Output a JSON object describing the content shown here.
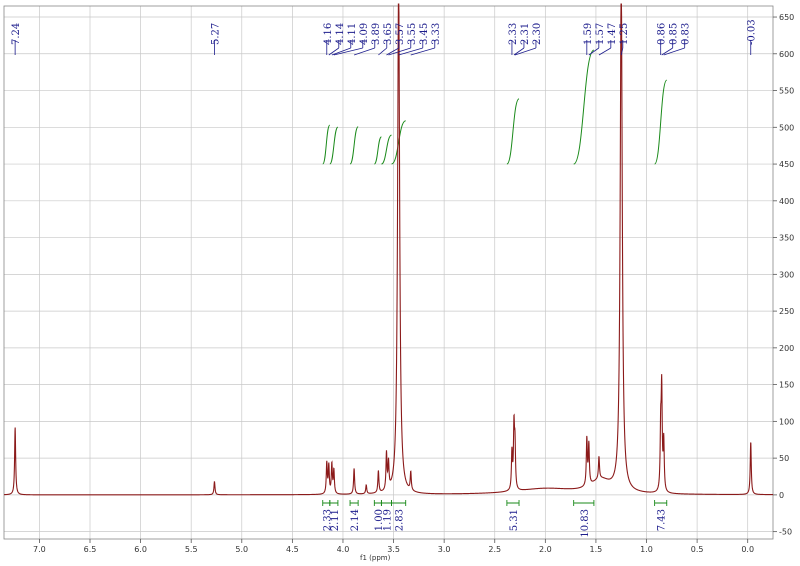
{
  "chart_data": {
    "type": "line",
    "title": "",
    "xlabel": "f1 (ppm)",
    "ylabel": "",
    "xlim": [
      7.35,
      -0.25
    ],
    "ylim": [
      -60,
      665
    ],
    "x_ticks": [
      "7.0",
      "6.5",
      "6.0",
      "5.5",
      "5.0",
      "4.5",
      "4.0",
      "3.5",
      "3.0",
      "2.5",
      "2.0",
      "1.5",
      "1.0",
      "0.5",
      "0.0"
    ],
    "y_ticks": [
      "-50",
      "0",
      "50",
      "100",
      "150",
      "200",
      "250",
      "300",
      "350",
      "400",
      "450",
      "500",
      "550",
      "600",
      "650"
    ],
    "grid": true,
    "series": [
      {
        "peaks": [
          {
            "x": 7.24,
            "y": 92
          },
          {
            "x": 5.27,
            "y": 18
          },
          {
            "x": 4.16,
            "y": 42
          },
          {
            "x": 4.14,
            "y": 38
          },
          {
            "x": 4.11,
            "y": 40
          },
          {
            "x": 4.09,
            "y": 32
          },
          {
            "x": 3.89,
            "y": 35
          },
          {
            "x": 3.77,
            "y": 12
          },
          {
            "x": 3.65,
            "y": 30
          },
          {
            "x": 3.57,
            "y": 50
          },
          {
            "x": 3.55,
            "y": 36
          },
          {
            "x": 3.45,
            "y": 700
          },
          {
            "x": 3.33,
            "y": 25
          },
          {
            "x": 2.33,
            "y": 52
          },
          {
            "x": 2.31,
            "y": 85
          },
          {
            "x": 2.3,
            "y": 58
          },
          {
            "x": 1.59,
            "y": 64
          },
          {
            "x": 1.57,
            "y": 55
          },
          {
            "x": 1.47,
            "y": 30
          },
          {
            "x": 1.25,
            "y": 700
          },
          {
            "x": 0.86,
            "y": 80
          },
          {
            "x": 0.85,
            "y": 135
          },
          {
            "x": 0.83,
            "y": 68
          },
          {
            "x": -0.03,
            "y": 72
          }
        ]
      }
    ],
    "peak_labels": [
      "7.24",
      "5.27",
      "4.16",
      "4.14",
      "4.11",
      "4.09",
      "3.89",
      "3.65",
      "3.57",
      "3.55",
      "3.45",
      "3.33",
      "2.33",
      "2.31",
      "2.30",
      "1.59",
      "1.57",
      "1.47",
      "1.25",
      "0.86",
      "0.85",
      "0.83",
      "-0.03"
    ],
    "integrals": [
      {
        "label": "2.33",
        "from": 4.2,
        "to": 4.13
      },
      {
        "label": "2.11",
        "from": 4.13,
        "to": 4.05
      },
      {
        "label": "2.14",
        "from": 3.93,
        "to": 3.85
      },
      {
        "label": "1.00",
        "from": 3.69,
        "to": 3.62
      },
      {
        "label": "1.19",
        "from": 3.62,
        "to": 3.52
      },
      {
        "label": "2.83",
        "from": 3.52,
        "to": 3.38
      },
      {
        "label": "5.31",
        "from": 2.38,
        "to": 2.26
      },
      {
        "label": "10.83",
        "from": 1.72,
        "to": 1.52
      },
      {
        "label": "7.43",
        "from": 0.92,
        "to": 0.8
      }
    ],
    "colors": {
      "spectrum": "#8b1a1a",
      "labels": "#1c1c8c",
      "integral_curve": "#1a8a1a",
      "grid": "#c8c8c8"
    }
  }
}
